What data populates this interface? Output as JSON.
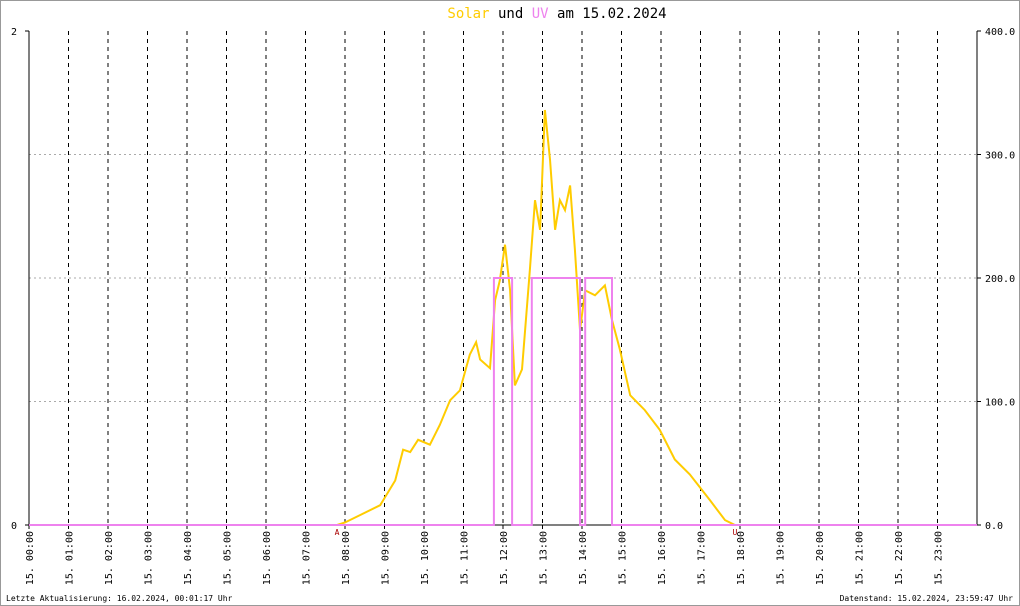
{
  "chart_data": {
    "type": "line",
    "title_mid": "und",
    "title_end": "am 15.02.2024",
    "xlim": [
      0,
      24
    ],
    "xticks": [
      {
        "value": 0,
        "label": "15. 00:00"
      },
      {
        "value": 1,
        "label": "15. 01:00"
      },
      {
        "value": 2,
        "label": "15. 02:00"
      },
      {
        "value": 3,
        "label": "15. 03:00"
      },
      {
        "value": 4,
        "label": "15. 04:00"
      },
      {
        "value": 5,
        "label": "15. 05:00"
      },
      {
        "value": 6,
        "label": "15. 06:00"
      },
      {
        "value": 7,
        "label": "15. 07:00"
      },
      {
        "value": 8,
        "label": "15. 08:00"
      },
      {
        "value": 9,
        "label": "15. 09:00"
      },
      {
        "value": 10,
        "label": "15. 10:00"
      },
      {
        "value": 11,
        "label": "15. 11:00"
      },
      {
        "value": 12,
        "label": "15. 12:00"
      },
      {
        "value": 13,
        "label": "15. 13:00"
      },
      {
        "value": 14,
        "label": "15. 14:00"
      },
      {
        "value": 15,
        "label": "15. 15:00"
      },
      {
        "value": 16,
        "label": "15. 16:00"
      },
      {
        "value": 17,
        "label": "15. 17:00"
      },
      {
        "value": 18,
        "label": "15. 18:00"
      },
      {
        "value": 19,
        "label": "15. 19:00"
      },
      {
        "value": 20,
        "label": "15. 20:00"
      },
      {
        "value": 21,
        "label": "15. 21:00"
      },
      {
        "value": 22,
        "label": "15. 22:00"
      },
      {
        "value": 23,
        "label": "15. 23:00"
      }
    ],
    "ylim": [
      0,
      2
    ],
    "yticks": [
      0,
      2
    ],
    "y2lim": [
      0,
      400
    ],
    "y2ticks": [
      {
        "value": 0,
        "label": "0.0"
      },
      {
        "value": 100,
        "label": "100.0"
      },
      {
        "value": 200,
        "label": "200.0"
      },
      {
        "value": 300,
        "label": "300.0"
      },
      {
        "value": 400,
        "label": "400.0"
      }
    ],
    "grid": true,
    "series": [
      {
        "name": "Solar",
        "color": "#ffcc00",
        "axis": "y2",
        "x": [
          0,
          7.8,
          8.0,
          8.38,
          8.89,
          9.27,
          9.47,
          9.65,
          9.85,
          10.15,
          10.4,
          10.66,
          10.91,
          11.16,
          11.32,
          11.42,
          11.67,
          11.8,
          11.92,
          12.05,
          12.18,
          12.3,
          12.48,
          12.68,
          12.81,
          12.94,
          13.06,
          13.19,
          13.32,
          13.44,
          13.57,
          13.7,
          13.82,
          13.95,
          14.08,
          14.33,
          14.58,
          14.76,
          14.96,
          15.22,
          15.59,
          15.97,
          16.35,
          16.73,
          17.24,
          17.62,
          17.87,
          24
        ],
        "values": [
          0,
          0,
          2,
          8,
          16,
          36,
          61,
          59,
          69,
          65,
          81,
          101,
          109,
          138,
          148,
          134,
          127,
          182,
          198,
          227,
          190,
          113,
          126,
          207,
          263,
          239,
          336,
          296,
          239,
          263,
          255,
          275,
          223,
          158,
          190,
          186,
          194,
          166,
          142,
          105,
          93,
          77,
          53,
          41,
          20,
          4,
          0,
          0
        ]
      },
      {
        "name": "UV",
        "color": "#ee82ee",
        "x": [
          0,
          11.77,
          11.77,
          12.23,
          12.23,
          12.73,
          12.73,
          13.95,
          13.95,
          14.08,
          14.08,
          14.76,
          14.76,
          24
        ],
        "values": [
          0,
          0,
          1,
          1,
          0,
          0,
          1,
          1,
          0,
          0,
          1,
          1,
          0,
          0
        ]
      }
    ],
    "annotations": [
      {
        "text": "A",
        "x": 7.8
      },
      {
        "text": "U",
        "x": 17.87
      }
    ],
    "footer_left": "Letzte Aktualisierung: 16.02.2024, 00:01:17 Uhr",
    "footer_right": "Datenstand: 15.02.2024, 23:59:47 Uhr"
  }
}
